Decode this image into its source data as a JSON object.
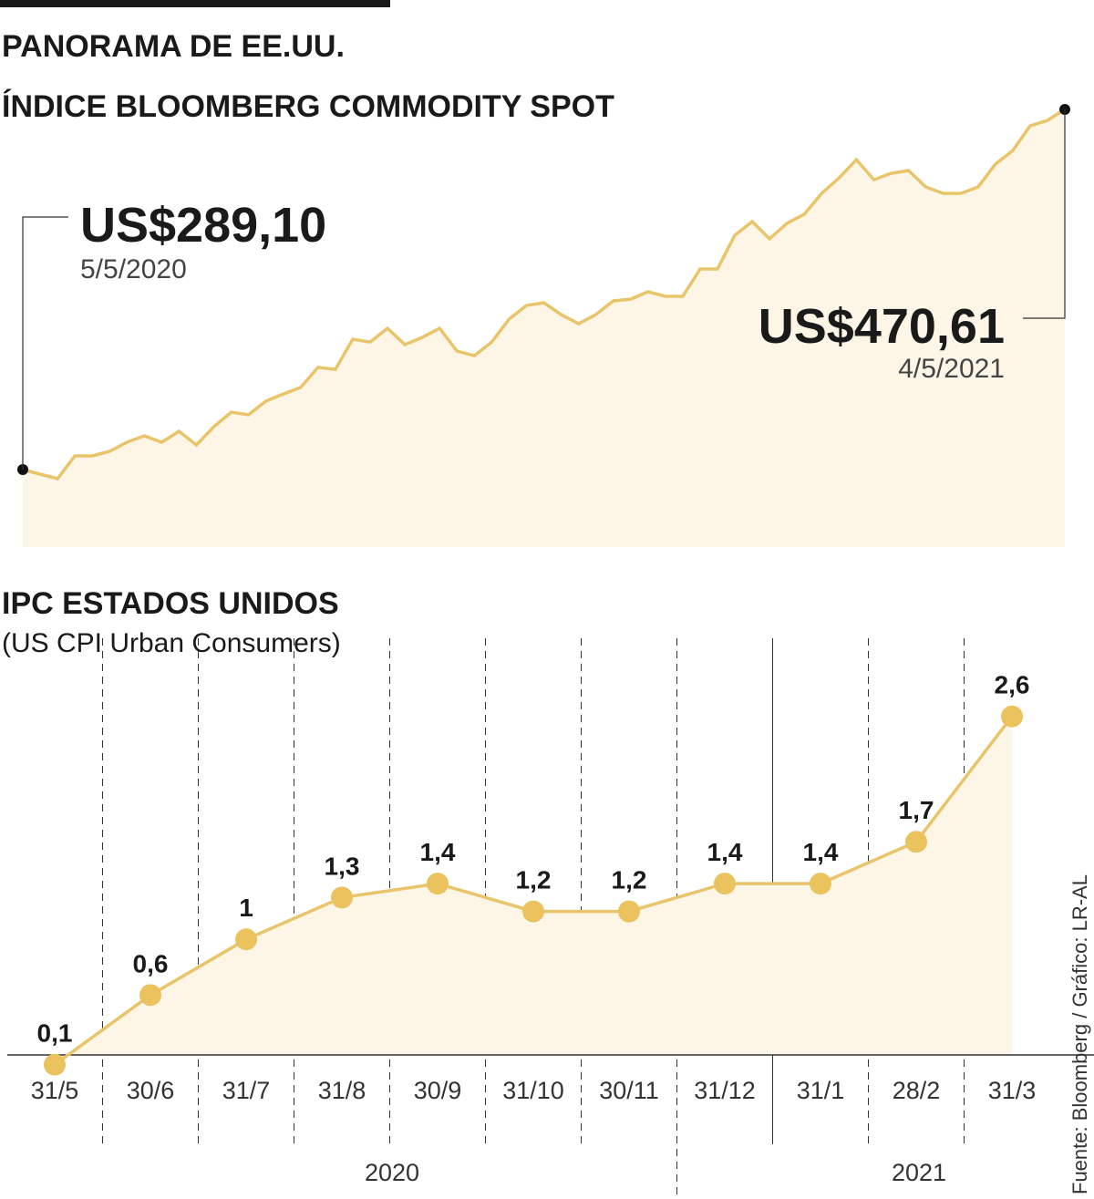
{
  "chart_data": [
    {
      "type": "area",
      "title": "PANORAMA DE EE.UU.",
      "subtitle": "ÍNDICE BLOOMBERG COMMODITY SPOT",
      "color": "#e8c56a",
      "fill": "#fdf6e6",
      "values": [
        289.1,
        286.8,
        284.5,
        296.0,
        296.0,
        298.3,
        302.9,
        306.1,
        302.9,
        308.4,
        301.5,
        310.7,
        318.0,
        316.7,
        323.6,
        327.2,
        330.5,
        340.6,
        339.6,
        354.8,
        353.4,
        360.3,
        352.1,
        355.7,
        360.3,
        348.8,
        346.5,
        353.4,
        364.9,
        371.8,
        373.2,
        367.2,
        362.6,
        367.2,
        374.1,
        375.0,
        378.7,
        376.4,
        376.4,
        390.2,
        390.2,
        407.2,
        414.1,
        405.4,
        413.2,
        417.8,
        428.3,
        436.1,
        445.3,
        435.2,
        438.4,
        439.8,
        431.5,
        428.3,
        428.3,
        431.5,
        443.0,
        449.9,
        462.3,
        465.1,
        470.61
      ],
      "annotations": [
        {
          "label": "US$289,10",
          "date": "5/5/2020"
        },
        {
          "label": "US$470,61",
          "date": "4/5/2021"
        }
      ]
    },
    {
      "type": "line",
      "title": "IPC ESTADOS UNIDOS",
      "subtitle": "(US CPI Urban Consumers)",
      "color": "#e8c56a",
      "fill": "#fdf6e6",
      "marker_color": "#ebc35e",
      "categories": [
        "31/5",
        "30/6",
        "31/7",
        "31/8",
        "30/9",
        "31/10",
        "30/11",
        "31/12",
        "31/1",
        "28/2",
        "31/3"
      ],
      "values": [
        0.1,
        0.6,
        1,
        1.3,
        1.4,
        1.2,
        1.2,
        1.4,
        1.4,
        1.7,
        2.6
      ],
      "value_labels": [
        "0,1",
        "0,6",
        "1",
        "1,3",
        "1,4",
        "1,2",
        "1,2",
        "1,4",
        "1,4",
        "1,7",
        "2,6"
      ],
      "years": [
        "2020",
        "2021"
      ],
      "source": "Fuente: Bloomberg / Gráfico: LR-AL"
    }
  ]
}
